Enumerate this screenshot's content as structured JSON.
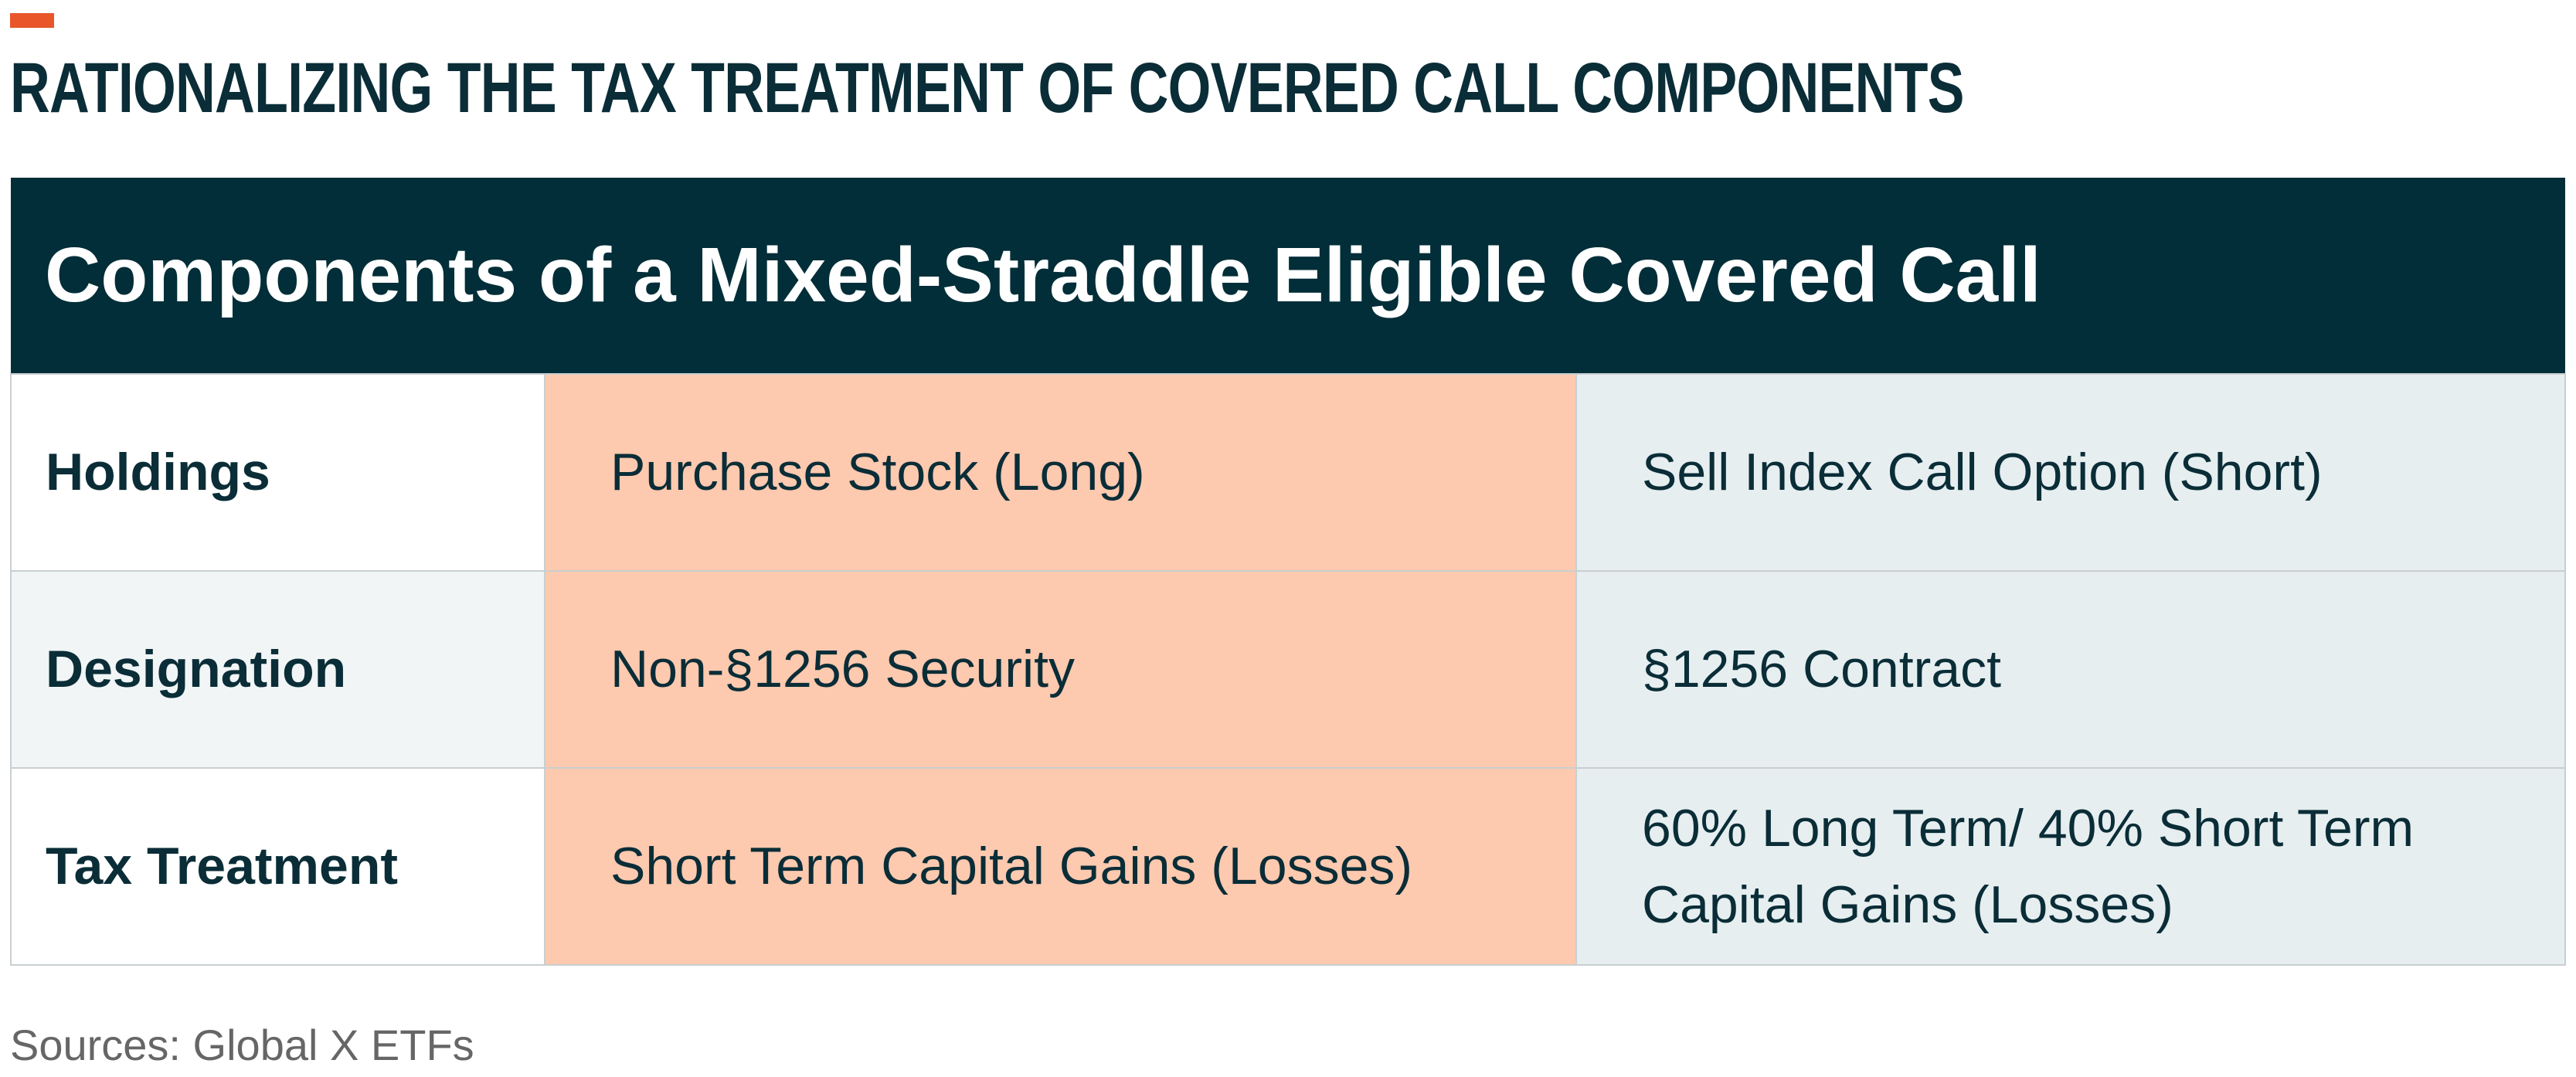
{
  "header": {
    "title": "RATIONALIZING THE TAX TREATMENT OF COVERED CALL COMPONENTS"
  },
  "table": {
    "title": "Components of a Mixed-Straddle Eligible Covered Call",
    "rows": [
      [
        "Holdings",
        "Purchase Stock (Long)",
        "Sell Index Call Option (Short)"
      ],
      [
        "Designation",
        "Non-§1256 Security",
        "§1256 Contract"
      ],
      [
        "Tax Treatment",
        "Short Term Capital Gains (Losses)",
        "60% Long Term/ 40% Short Term Capital Gains (Losses)"
      ]
    ]
  },
  "footer": {
    "source": "Sources: Global X ETFs"
  }
}
